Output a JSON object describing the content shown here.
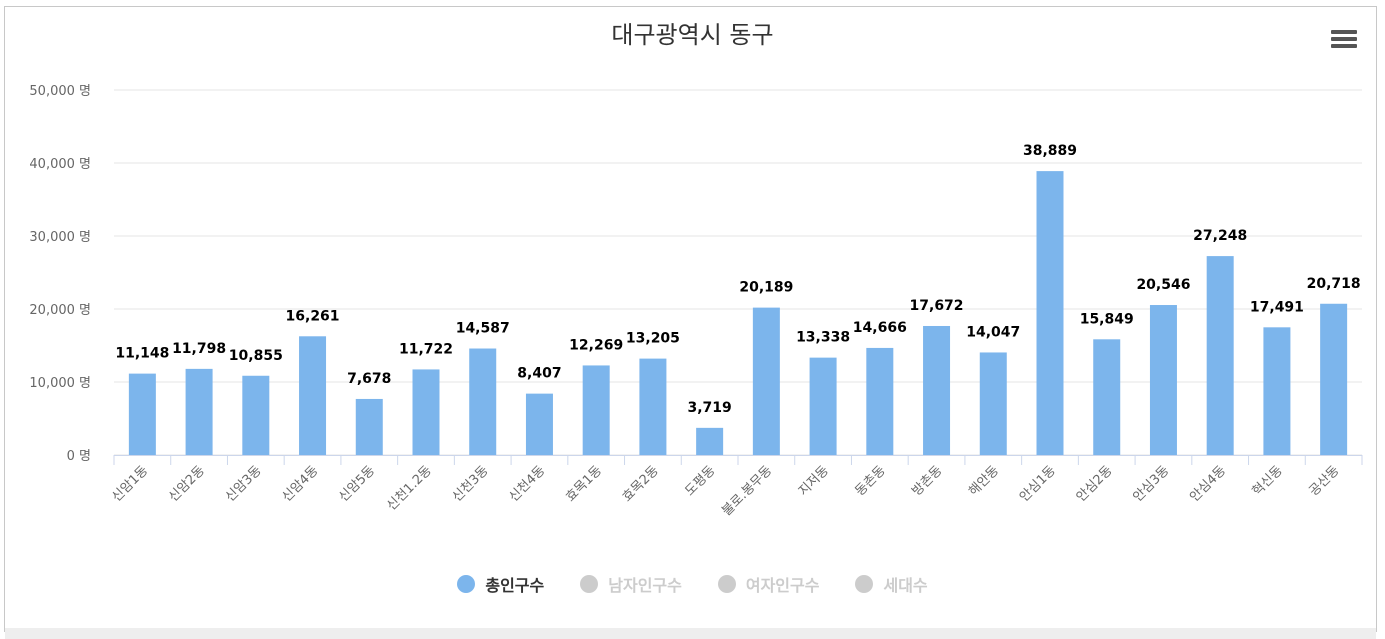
{
  "chart_data": {
    "type": "bar",
    "title": "대구광역시 동구",
    "categories": [
      "신암1동",
      "신암2동",
      "신암3동",
      "신암4동",
      "신암5동",
      "신천1.2동",
      "신천3동",
      "신천4동",
      "효목1동",
      "효목2동",
      "도평동",
      "불로.봉무동",
      "지저동",
      "동촌동",
      "방촌동",
      "해안동",
      "안심1동",
      "안심2동",
      "안심3동",
      "안심4동",
      "혁신동",
      "공산동"
    ],
    "series": [
      {
        "name": "총인구수",
        "values": [
          11148,
          11798,
          10855,
          16261,
          7678,
          11722,
          14587,
          8407,
          12269,
          13205,
          3719,
          20189,
          13338,
          14666,
          17672,
          14047,
          38889,
          15849,
          20546,
          27248,
          17491,
          20718
        ],
        "color": "#7cb5ec",
        "visible": true
      },
      {
        "name": "남자인구수",
        "visible": false,
        "color": "#cccccc"
      },
      {
        "name": "여자인구수",
        "visible": false,
        "color": "#cccccc"
      },
      {
        "name": "세대수",
        "visible": false,
        "color": "#cccccc"
      }
    ],
    "yticks": [
      "0 명",
      "10,000 명",
      "20,000 명",
      "30,000 명",
      "40,000 명",
      "50,000 명"
    ],
    "ylim": [
      0,
      50000
    ],
    "value_labels": [
      "11,148",
      "11,798",
      "10,855",
      "16,261",
      "7,678",
      "11,722",
      "14,587",
      "8,407",
      "12,269",
      "13,205",
      "3,719",
      "20,189",
      "13,338",
      "14,666",
      "17,672",
      "14,047",
      "38,889",
      "15,849",
      "20,546",
      "27,248",
      "17,491",
      "20,718"
    ],
    "grid": true,
    "legend_position": "bottom"
  },
  "menu": {
    "icon": "hamburger-menu-icon"
  },
  "colors": {
    "bar": "#7cb5ec",
    "inactive": "#cccccc",
    "active_text": "#333333",
    "inactive_text": "#cccccc"
  }
}
